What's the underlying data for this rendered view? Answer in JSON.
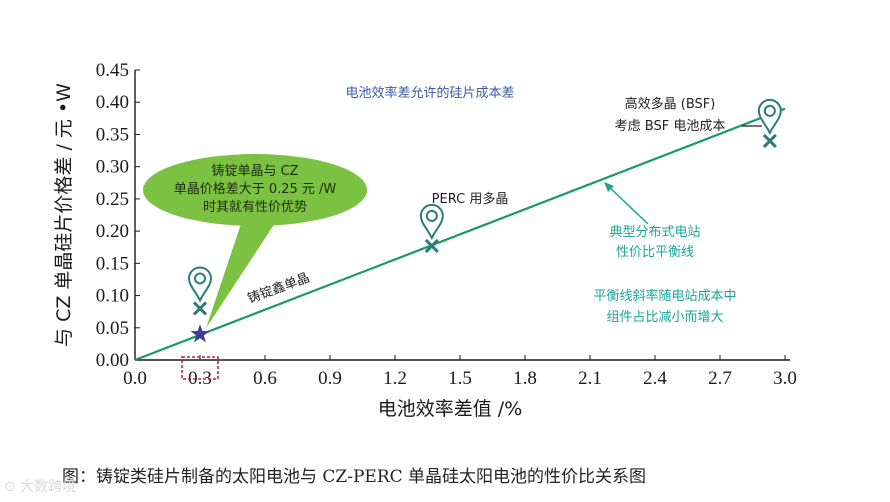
{
  "chart_data": {
    "type": "line",
    "title": "",
    "xlabel": "电池效率差值 /%",
    "ylabel": "与 CZ 单晶硅片价格差 / 元 •W",
    "xlim": [
      0.0,
      3.0
    ],
    "ylim": [
      0.0,
      0.45
    ],
    "x_ticks": [
      "0.0",
      "0.3",
      "0.6",
      "0.9",
      "1.2",
      "1.5",
      "1.8",
      "2.1",
      "2.4",
      "2.7",
      "3.0"
    ],
    "y_ticks": [
      "0.00",
      "0.05",
      "0.10",
      "0.15",
      "0.20",
      "0.25",
      "0.30",
      "0.35",
      "0.40",
      "0.45"
    ],
    "grid": false,
    "line": {
      "name": "",
      "x": [
        0.0,
        3.0
      ],
      "y": [
        0.0,
        0.39
      ],
      "color": "#1a9a62"
    },
    "markers": [
      {
        "x": 0.3,
        "y": 0.04,
        "symbol": "star",
        "color": "#3a3f8f"
      },
      {
        "x": 0.3,
        "y": 0.08,
        "symbol": "x",
        "color": "#2e7b76"
      },
      {
        "x": 1.37,
        "y": 0.177,
        "symbol": "x",
        "color": "#2e7b76"
      },
      {
        "x": 2.93,
        "y": 0.34,
        "symbol": "x",
        "color": "#2e7b76"
      }
    ],
    "pins": [
      {
        "x": 0.3,
        "y": 0.08,
        "color": "#2e7b76"
      },
      {
        "x": 1.37,
        "y": 0.177,
        "color": "#2e7b76"
      },
      {
        "x": 2.93,
        "y": 0.34,
        "color": "#2e7b76"
      }
    ],
    "annotations": {
      "top_note": "电池效率差允许的硅片成本差",
      "bsf_line1": "高效多晶 (BSF)",
      "bsf_line2": "考虑 BSF 电池成本",
      "perc": "PERC 用多晶",
      "ingot": "铸锭鑫单晶",
      "typical_line1": "典型分布式电站",
      "typical_line2": "性价比平衡线",
      "slope_line1": "平衡线斜率随电站成本中",
      "slope_line2": "组件占比减小而增大",
      "bubble_line1": "铸锭单晶与 CZ",
      "bubble_line2": "单晶价格差大于 0.25 元 /W",
      "bubble_line3": "时其就有性价优势"
    },
    "colors": {
      "axis": "#1a1a1a",
      "line": "#1a9a62",
      "note_blue": "#3c5aa8",
      "note_green": "#1aa59a",
      "bubble": "#7cc242",
      "dashed_box": "#b02040"
    }
  },
  "caption": "图：铸锭类硅片制备的太阳电池与 CZ-PERC 单晶硅太阳电池的性价比关系图",
  "watermark": "⊙ 大数跨境"
}
